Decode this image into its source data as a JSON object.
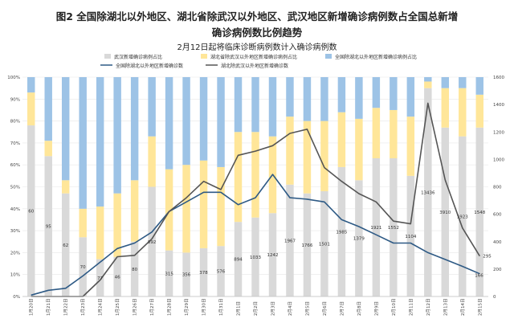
{
  "chart_data": {
    "type": "bar",
    "title_line1": "图2 全国除湖北以外地区、湖北省除武汉以外地区、武汉地区新增确诊病例数占全国总新增",
    "title_line2": "确诊病例数比例趋势",
    "subtitle": "2月12日起将临床诊断病例数计入确诊病例数",
    "categories": [
      "1月20日",
      "1月21日",
      "1月22日",
      "1月23日",
      "1月24日",
      "1月25日",
      "1月26日",
      "1月27日",
      "1月28日",
      "1月29日",
      "1月30日",
      "1月31日",
      "2月1日",
      "2月2日",
      "2月3日",
      "2月4日",
      "2月5日",
      "2月6日",
      "2月7日",
      "2月8日",
      "2月9日",
      "2月10日",
      "2月11日",
      "2月12日",
      "2月13日",
      "2月14日",
      "2月15日"
    ],
    "series": [
      {
        "name": "武汉新增确诊病例占比",
        "color": "#d9d9d9",
        "values": [
          78,
          64,
          47,
          27,
          17,
          18,
          25,
          50,
          21,
          20,
          22,
          23,
          34,
          36,
          38,
          51,
          47,
          48,
          59,
          53,
          63,
          63,
          55,
          95,
          77,
          73,
          77
        ]
      },
      {
        "name": "湖北省除武汉以外地区新增确诊病例占比",
        "color": "#ffe699",
        "values": [
          15,
          7,
          6,
          13,
          24,
          29,
          28,
          23,
          37,
          40,
          40,
          36,
          41,
          39,
          35,
          31,
          33,
          32,
          25,
          28,
          23,
          22,
          27,
          3,
          18,
          22,
          15
        ]
      },
      {
        "name": "全国除湖北以外地区新增确诊病例占比",
        "color": "#9dc3e6",
        "values": [
          7,
          29,
          47,
          60,
          59,
          53,
          47,
          27,
          42,
          40,
          38,
          41,
          25,
          25,
          27,
          18,
          20,
          20,
          16,
          19,
          14,
          15,
          18,
          2,
          5,
          5,
          8
        ]
      }
    ],
    "lines": [
      {
        "name": "全国除湖北以外地区新增确诊数",
        "color": "#2e5a85",
        "values": [
          10,
          45,
          60,
          150,
          250,
          350,
          390,
          470,
          620,
          690,
          760,
          760,
          670,
          720,
          890,
          720,
          710,
          690,
          560,
          510,
          450,
          390,
          390,
          320,
          270,
          220,
          166
        ]
      },
      {
        "name": "湖北除武汉以外地区新增确诊数",
        "color": "#555555",
        "values": [
          0,
          0,
          0,
          0,
          120,
          290,
          300,
          420,
          620,
          720,
          840,
          780,
          1030,
          1060,
          1100,
          1190,
          1220,
          940,
          840,
          750,
          690,
          550,
          530,
          1410,
          850,
          500,
          295
        ]
      }
    ],
    "data_labels": [
      "60",
      "95",
      "62",
      "70",
      "77",
      "46",
      "80",
      "892",
      "315",
      "356",
      "378",
      "576",
      "894",
      "1033",
      "1242",
      "1967",
      "1766",
      "1501",
      "1985",
      "1379",
      "1921",
      "1552",
      "1104",
      "13436",
      "3910",
      "1923",
      "1548"
    ],
    "end_label_line1": "295",
    "end_label_line2": "166",
    "left_ticks": [
      "0%",
      "10%",
      "20%",
      "30%",
      "40%",
      "50%",
      "60%",
      "70%",
      "80%",
      "90%",
      "100%"
    ],
    "right_ticks": [
      "0",
      "200",
      "400",
      "600",
      "800",
      "1000",
      "1200",
      "1400",
      "1600"
    ],
    "left_ylim": [
      0,
      100
    ],
    "right_ylim": [
      0,
      1600
    ],
    "legend_placement": "top"
  }
}
